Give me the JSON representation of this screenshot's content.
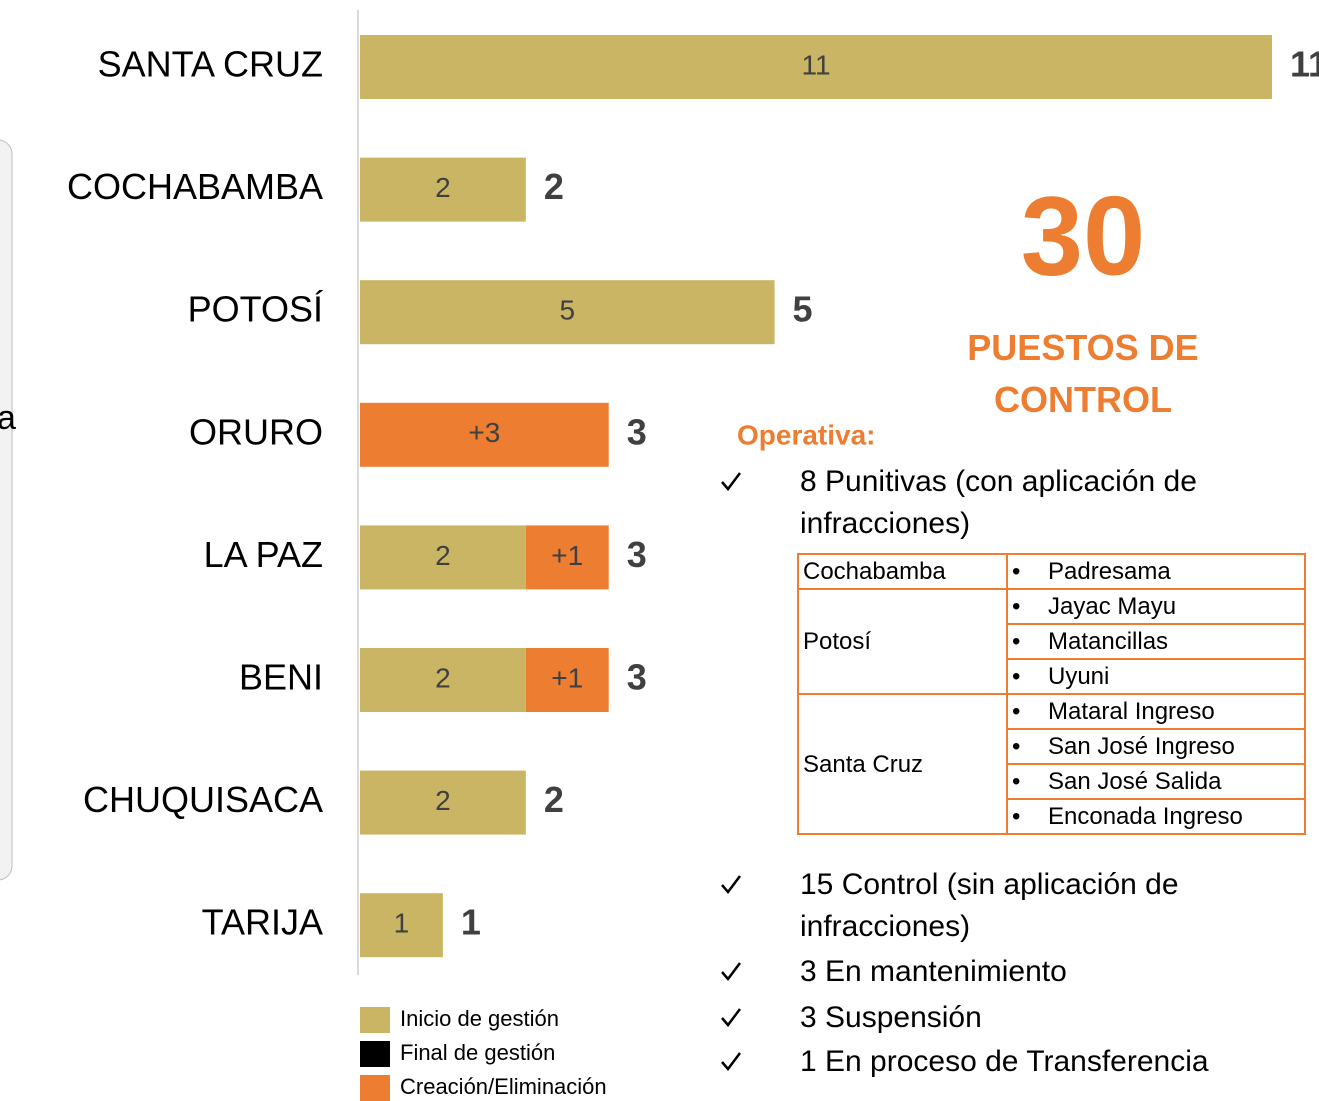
{
  "fragment": "a",
  "chart_data": {
    "type": "bar",
    "orientation": "horizontal",
    "stacked": true,
    "categories": [
      "SANTA CRUZ",
      "COCHABAMBA",
      "POTOSÍ",
      "ORURO",
      "LA PAZ",
      "BENI",
      "CHUQUISACA",
      "TARIJA"
    ],
    "series": [
      {
        "name": "Inicio de gestión",
        "color": "#C9B563",
        "values": [
          11,
          2,
          5,
          null,
          2,
          2,
          2,
          1
        ]
      },
      {
        "name": "Final de gestión",
        "color": "#000000",
        "values": [
          null,
          null,
          null,
          null,
          null,
          null,
          null,
          null
        ]
      },
      {
        "name": "Creación/Eliminación",
        "color": "#ED7D31",
        "values": [
          null,
          null,
          null,
          3,
          1,
          1,
          null,
          null
        ],
        "value_labels": [
          null,
          null,
          null,
          "+3",
          "+1",
          "+1",
          null,
          null
        ]
      }
    ],
    "totals": [
      11,
      2,
      5,
      3,
      3,
      3,
      2,
      1
    ],
    "xlim": [
      0,
      11
    ]
  },
  "summary": {
    "total": 30,
    "label": "PUESTOS DE CONTROL"
  },
  "operativa": {
    "heading": "Operativa:",
    "items": [
      "8 Punitivas (con aplicación de infracciones)",
      "15 Control (sin aplicación de infracciones)",
      "3 En mantenimiento",
      "3 Suspensión",
      "1 En proceso de Transferencia"
    ],
    "table": [
      {
        "region": "Cochabamba",
        "posts": [
          "Padresama"
        ]
      },
      {
        "region": "Potosí",
        "posts": [
          "Jayac Mayu",
          "Matancillas",
          "Uyuni"
        ]
      },
      {
        "region": "Santa Cruz",
        "posts": [
          "Mataral Ingreso",
          "San José Ingreso",
          "San José Salida",
          "Enconada Ingreso"
        ]
      }
    ]
  }
}
